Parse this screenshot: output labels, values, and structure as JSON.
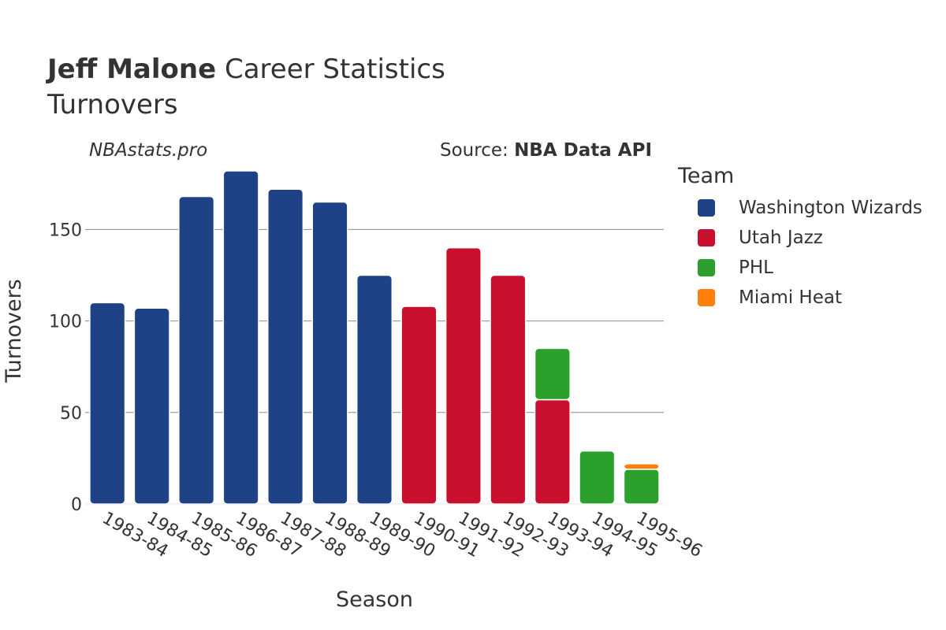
{
  "header": {
    "title_bold": "Jeff Malone",
    "title_rest": "Career Statistics",
    "subtitle": "Turnovers"
  },
  "watermark": {
    "site": "NBAstats.pro",
    "source_prefix": "Source: ",
    "source_name": "NBA Data API"
  },
  "chart_data": {
    "type": "bar",
    "stacked": true,
    "xlabel": "Season",
    "ylabel": "Turnovers",
    "ylim": [
      0,
      185
    ],
    "yticks": [
      0,
      50,
      100,
      150
    ],
    "grid": true,
    "legend_title": "Team",
    "legend_position": "right",
    "categories": [
      "1983-84",
      "1984-85",
      "1985-86",
      "1986-87",
      "1987-88",
      "1988-89",
      "1989-90",
      "1990-91",
      "1991-92",
      "1992-93",
      "1993-94",
      "1994-95",
      "1995-96"
    ],
    "series": [
      {
        "name": "Washington Wizards",
        "color": "#1f4287",
        "values": [
          110,
          107,
          168,
          182,
          172,
          165,
          125,
          0,
          0,
          0,
          0,
          0,
          0
        ]
      },
      {
        "name": "Utah Jazz",
        "color": "#c8102e",
        "values": [
          0,
          0,
          0,
          0,
          0,
          0,
          0,
          108,
          140,
          125,
          57,
          0,
          0
        ]
      },
      {
        "name": "PHL",
        "color": "#2ca02c",
        "values": [
          0,
          0,
          0,
          0,
          0,
          0,
          0,
          0,
          0,
          0,
          28,
          29,
          19
        ]
      },
      {
        "name": "Miami Heat",
        "color": "#ff7f0e",
        "values": [
          0,
          0,
          0,
          0,
          0,
          0,
          0,
          0,
          0,
          0,
          0,
          0,
          3
        ]
      }
    ]
  }
}
